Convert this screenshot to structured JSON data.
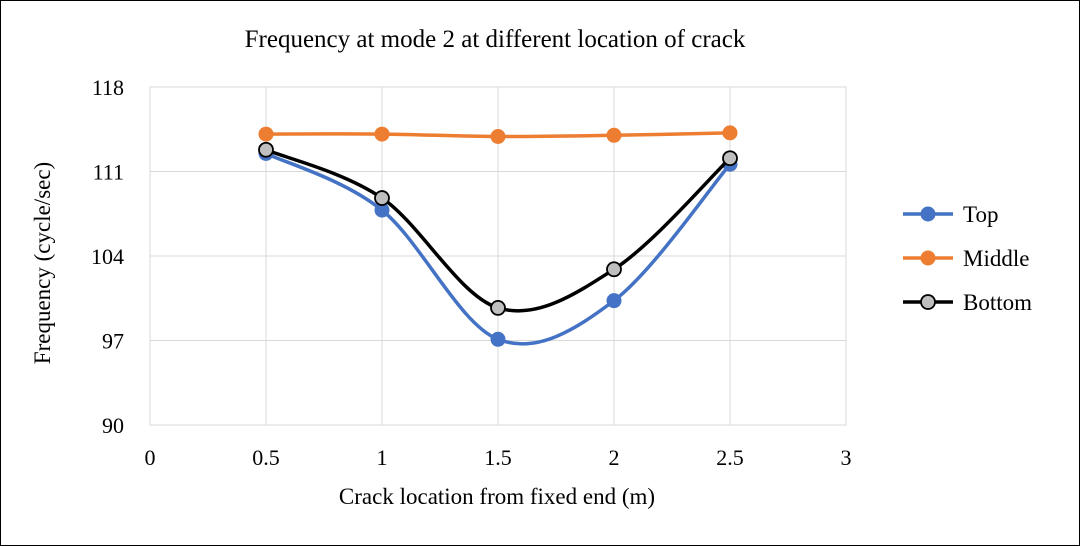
{
  "chart_data": {
    "type": "line",
    "title": "Frequency at mode 2 at different location of crack",
    "xlabel": "Crack location from fixed end (m)",
    "ylabel": "Frequency (cycle/sec)",
    "xlim": [
      0,
      3
    ],
    "ylim": [
      90,
      118
    ],
    "x_ticks": [
      "0",
      "0.5",
      "1",
      "1.5",
      "2",
      "2.5",
      "3"
    ],
    "y_ticks": [
      "90",
      "97",
      "104",
      "111",
      "118"
    ],
    "grid": "vertical and horizontal",
    "legend": "right",
    "smooth": true,
    "series": [
      {
        "name": "Top",
        "color": "#4472c4",
        "x": [
          0.5,
          1,
          1.5,
          2,
          2.5
        ],
        "values": [
          112.5,
          107.8,
          97.1,
          100.3,
          111.6
        ]
      },
      {
        "name": "Middle",
        "color": "#ed7d31",
        "x": [
          0.5,
          1,
          1.5,
          2,
          2.5
        ],
        "values": [
          114.1,
          114.1,
          113.9,
          114.0,
          114.2
        ]
      },
      {
        "name": "Bottom",
        "color": "#000000",
        "marker_fill": "#bfbfbf",
        "x": [
          0.5,
          1,
          1.5,
          2,
          2.5
        ],
        "values": [
          112.8,
          108.8,
          99.7,
          102.9,
          112.1
        ]
      }
    ]
  }
}
